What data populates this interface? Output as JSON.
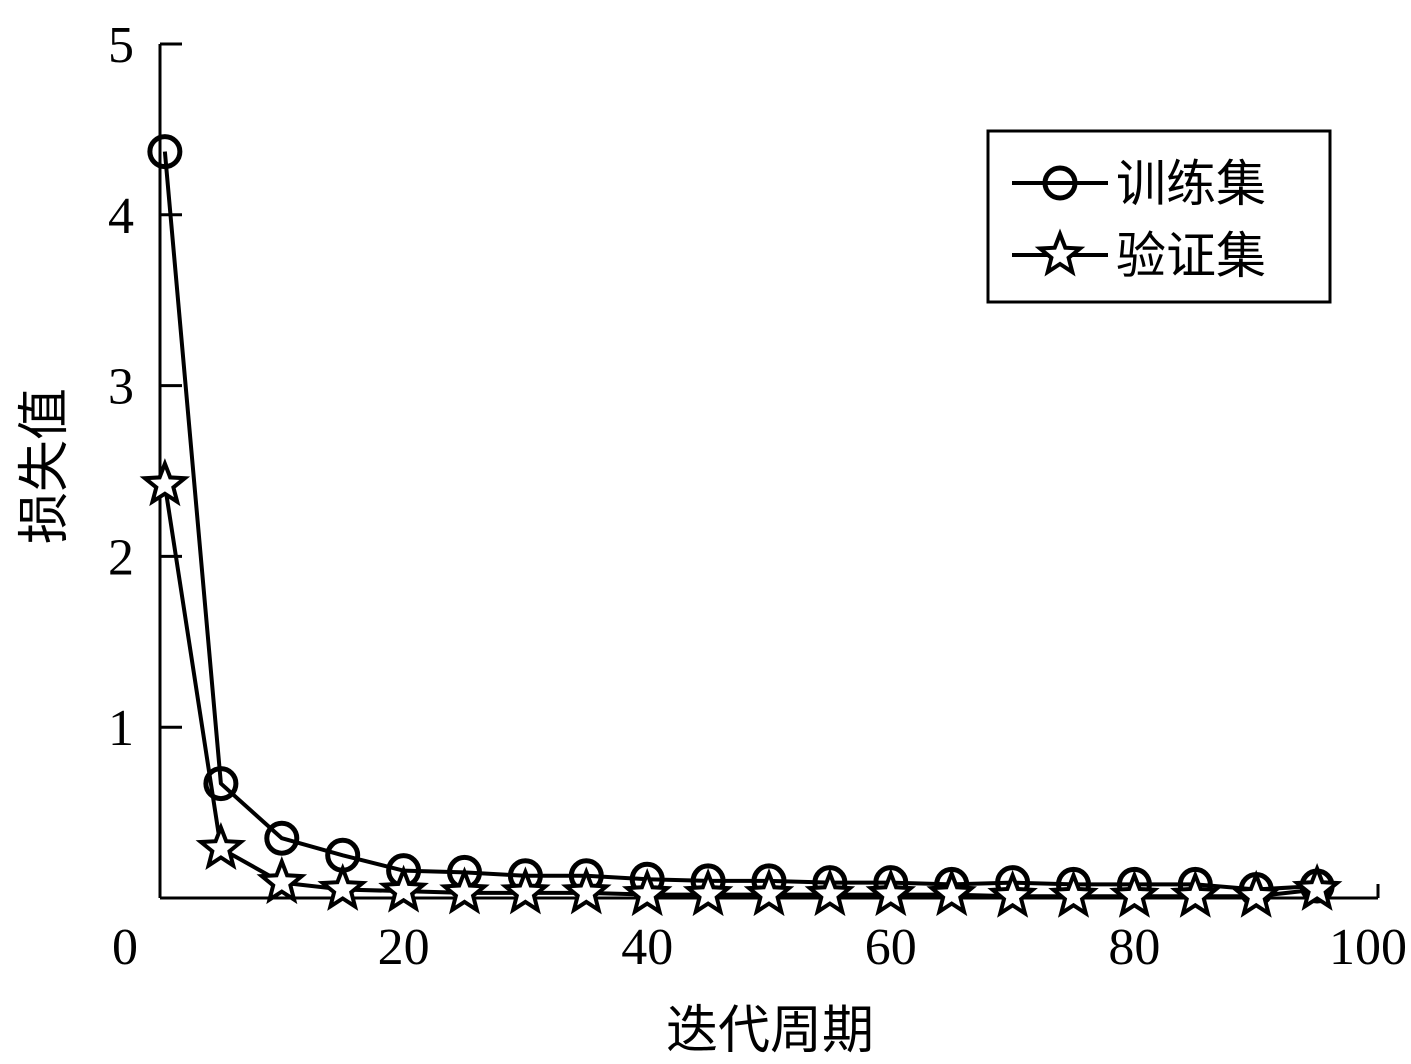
{
  "chart_data": {
    "type": "line",
    "title": "",
    "xlabel": "迭代周期",
    "ylabel": "损失值",
    "xlim": [
      0,
      100
    ],
    "ylim": [
      0,
      5
    ],
    "x_ticks": [
      "0",
      "20",
      "40",
      "60",
      "80",
      "100"
    ],
    "y_ticks": [
      "1",
      "2",
      "3",
      "4",
      "5"
    ],
    "grid": false,
    "legend_position": "top-right",
    "x": [
      0,
      5,
      10,
      15,
      20,
      25,
      30,
      35,
      40,
      45,
      50,
      55,
      60,
      65,
      70,
      75,
      80,
      85,
      90,
      95
    ],
    "series": [
      {
        "name": "训练集",
        "marker": "circle",
        "values": [
          4.37,
          0.67,
          0.35,
          0.25,
          0.16,
          0.15,
          0.13,
          0.13,
          0.11,
          0.1,
          0.1,
          0.09,
          0.09,
          0.08,
          0.09,
          0.08,
          0.08,
          0.08,
          0.05,
          0.07
        ]
      },
      {
        "name": "验证集",
        "marker": "star",
        "values": [
          2.42,
          0.29,
          0.09,
          0.05,
          0.04,
          0.03,
          0.03,
          0.03,
          0.02,
          0.02,
          0.02,
          0.02,
          0.02,
          0.02,
          0.01,
          0.01,
          0.01,
          0.01,
          0.01,
          0.05
        ]
      }
    ]
  }
}
